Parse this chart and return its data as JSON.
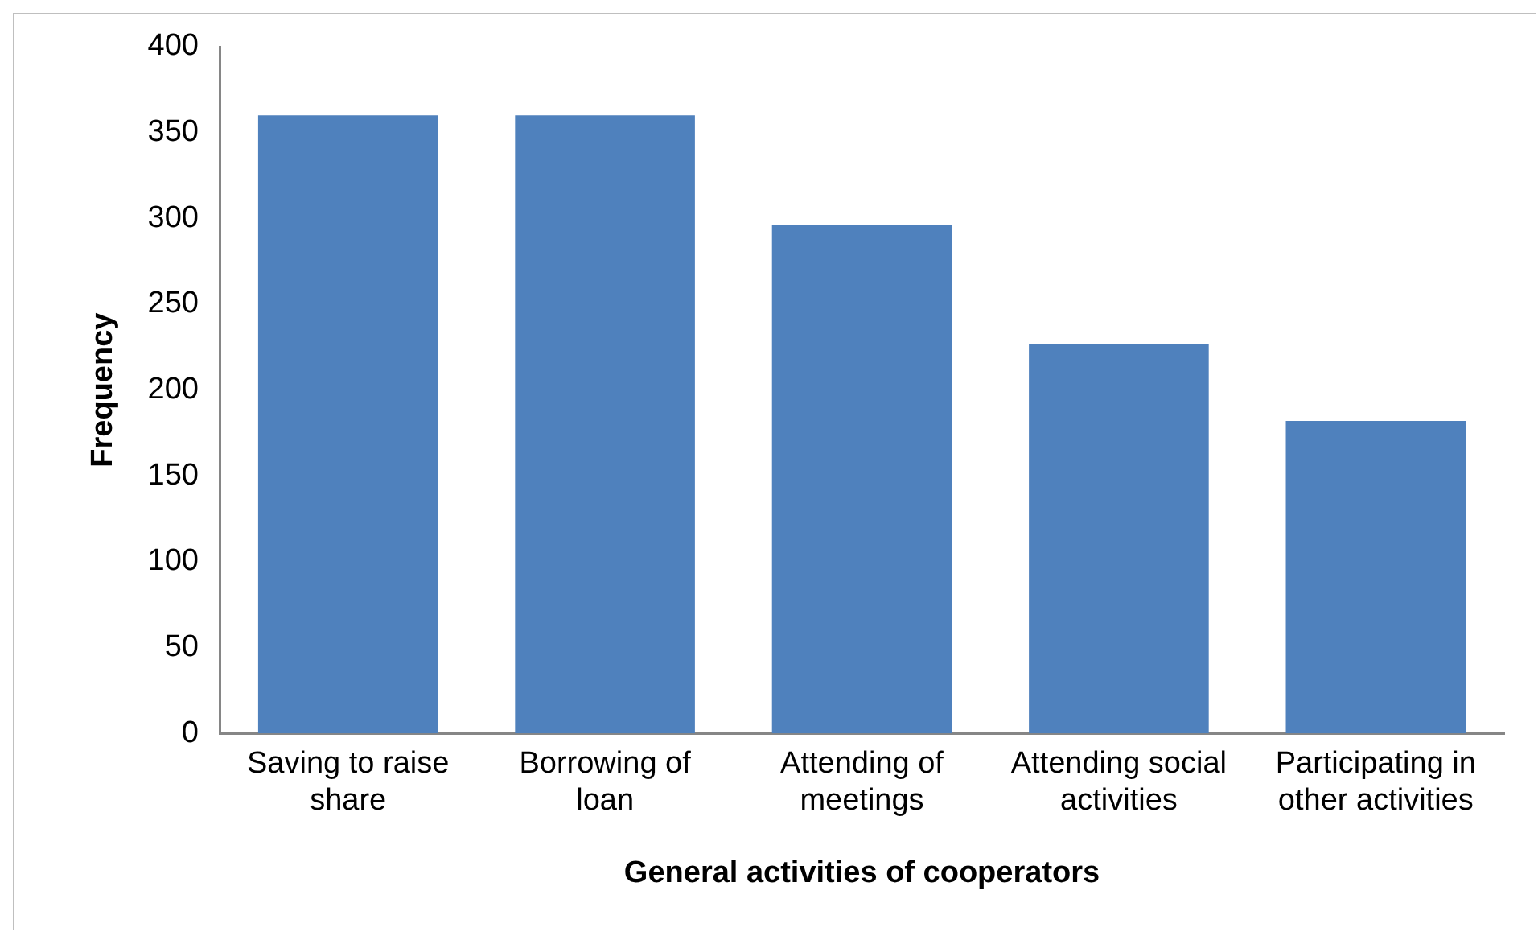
{
  "chart_data": {
    "type": "bar",
    "xlabel": "General activities of cooperators",
    "ylabel": "Frequency",
    "categories": [
      "Saving to raise share",
      "Borrowing of loan",
      "Attending of meetings",
      "Attending social activities",
      "Participating in other activities"
    ],
    "values": [
      360,
      360,
      296,
      227,
      182
    ],
    "color": "#4f81bd",
    "ylim": [
      0,
      400
    ],
    "yticks": [
      0,
      50,
      100,
      150,
      200,
      250,
      300,
      350,
      400
    ],
    "grid": false,
    "legend": false
  }
}
